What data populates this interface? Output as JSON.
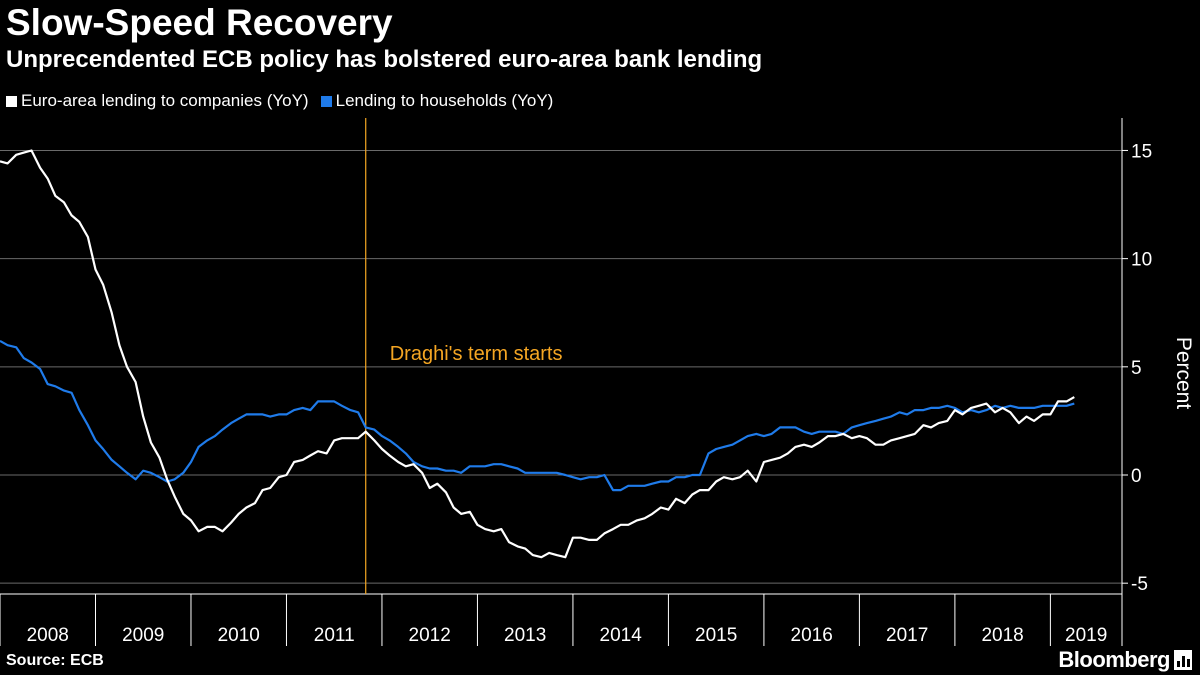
{
  "title": "Slow-Speed Recovery",
  "subtitle": "Unprecendented ECB policy has bolstered euro-area bank lending",
  "legend": [
    {
      "label": "Euro-area lending to companies (YoY)",
      "color": "#ffffff"
    },
    {
      "label": "Lending to households (YoY)",
      "color": "#1f7bea"
    }
  ],
  "source": "Source: ECB",
  "brand": "Bloomberg",
  "chart_data": {
    "type": "line",
    "ylabel": "Percent",
    "ylim": [
      -5.5,
      16.5
    ],
    "yticks": [
      -5,
      0,
      5,
      10,
      15
    ],
    "xlim": [
      2008.0,
      2019.75
    ],
    "xtick_labels": [
      "2008",
      "2009",
      "2010",
      "2011",
      "2012",
      "2013",
      "2014",
      "2015",
      "2016",
      "2017",
      "2018",
      "2019"
    ],
    "annotation": {
      "text": "Draghi's term starts",
      "x": 2011.83,
      "color": "#f5a623"
    },
    "series": [
      {
        "name": "Euro-area lending to companies (YoY)",
        "color": "#ffffff",
        "points": [
          [
            2008.0,
            14.5
          ],
          [
            2008.08,
            14.4
          ],
          [
            2008.17,
            14.8
          ],
          [
            2008.25,
            14.9
          ],
          [
            2008.33,
            15.0
          ],
          [
            2008.42,
            14.2
          ],
          [
            2008.5,
            13.7
          ],
          [
            2008.58,
            12.9
          ],
          [
            2008.67,
            12.6
          ],
          [
            2008.75,
            12.0
          ],
          [
            2008.83,
            11.7
          ],
          [
            2008.92,
            11.0
          ],
          [
            2009.0,
            9.5
          ],
          [
            2009.08,
            8.8
          ],
          [
            2009.17,
            7.5
          ],
          [
            2009.25,
            6.0
          ],
          [
            2009.33,
            5.0
          ],
          [
            2009.42,
            4.3
          ],
          [
            2009.5,
            2.7
          ],
          [
            2009.58,
            1.5
          ],
          [
            2009.67,
            0.8
          ],
          [
            2009.75,
            -0.2
          ],
          [
            2009.83,
            -1.0
          ],
          [
            2009.92,
            -1.8
          ],
          [
            2010.0,
            -2.1
          ],
          [
            2010.08,
            -2.6
          ],
          [
            2010.17,
            -2.4
          ],
          [
            2010.25,
            -2.4
          ],
          [
            2010.33,
            -2.6
          ],
          [
            2010.42,
            -2.2
          ],
          [
            2010.5,
            -1.8
          ],
          [
            2010.58,
            -1.5
          ],
          [
            2010.67,
            -1.3
          ],
          [
            2010.75,
            -0.7
          ],
          [
            2010.83,
            -0.6
          ],
          [
            2010.92,
            -0.1
          ],
          [
            2011.0,
            0.0
          ],
          [
            2011.08,
            0.6
          ],
          [
            2011.17,
            0.7
          ],
          [
            2011.25,
            0.9
          ],
          [
            2011.33,
            1.1
          ],
          [
            2011.42,
            1.0
          ],
          [
            2011.5,
            1.6
          ],
          [
            2011.58,
            1.7
          ],
          [
            2011.67,
            1.7
          ],
          [
            2011.75,
            1.7
          ],
          [
            2011.83,
            2.0
          ],
          [
            2011.92,
            1.6
          ],
          [
            2012.0,
            1.2
          ],
          [
            2012.08,
            0.9
          ],
          [
            2012.17,
            0.6
          ],
          [
            2012.25,
            0.4
          ],
          [
            2012.33,
            0.5
          ],
          [
            2012.42,
            0.1
          ],
          [
            2012.5,
            -0.6
          ],
          [
            2012.58,
            -0.4
          ],
          [
            2012.67,
            -0.8
          ],
          [
            2012.75,
            -1.5
          ],
          [
            2012.83,
            -1.8
          ],
          [
            2012.92,
            -1.7
          ],
          [
            2013.0,
            -2.3
          ],
          [
            2013.08,
            -2.5
          ],
          [
            2013.17,
            -2.6
          ],
          [
            2013.25,
            -2.5
          ],
          [
            2013.33,
            -3.1
          ],
          [
            2013.42,
            -3.3
          ],
          [
            2013.5,
            -3.4
          ],
          [
            2013.58,
            -3.7
          ],
          [
            2013.67,
            -3.8
          ],
          [
            2013.75,
            -3.6
          ],
          [
            2013.83,
            -3.7
          ],
          [
            2013.92,
            -3.8
          ],
          [
            2014.0,
            -2.9
          ],
          [
            2014.08,
            -2.9
          ],
          [
            2014.17,
            -3.0
          ],
          [
            2014.25,
            -3.0
          ],
          [
            2014.33,
            -2.7
          ],
          [
            2014.42,
            -2.5
          ],
          [
            2014.5,
            -2.3
          ],
          [
            2014.58,
            -2.3
          ],
          [
            2014.67,
            -2.1
          ],
          [
            2014.75,
            -2.0
          ],
          [
            2014.83,
            -1.8
          ],
          [
            2014.92,
            -1.5
          ],
          [
            2015.0,
            -1.6
          ],
          [
            2015.08,
            -1.1
          ],
          [
            2015.17,
            -1.3
          ],
          [
            2015.25,
            -0.9
          ],
          [
            2015.33,
            -0.7
          ],
          [
            2015.42,
            -0.7
          ],
          [
            2015.5,
            -0.3
          ],
          [
            2015.58,
            -0.1
          ],
          [
            2015.67,
            -0.2
          ],
          [
            2015.75,
            -0.1
          ],
          [
            2015.83,
            0.2
          ],
          [
            2015.92,
            -0.3
          ],
          [
            2016.0,
            0.6
          ],
          [
            2016.08,
            0.7
          ],
          [
            2016.17,
            0.8
          ],
          [
            2016.25,
            1.0
          ],
          [
            2016.33,
            1.3
          ],
          [
            2016.42,
            1.4
          ],
          [
            2016.5,
            1.3
          ],
          [
            2016.58,
            1.5
          ],
          [
            2016.67,
            1.8
          ],
          [
            2016.75,
            1.8
          ],
          [
            2016.83,
            1.9
          ],
          [
            2016.92,
            1.7
          ],
          [
            2017.0,
            1.8
          ],
          [
            2017.08,
            1.7
          ],
          [
            2017.17,
            1.4
          ],
          [
            2017.25,
            1.4
          ],
          [
            2017.33,
            1.6
          ],
          [
            2017.42,
            1.7
          ],
          [
            2017.5,
            1.8
          ],
          [
            2017.58,
            1.9
          ],
          [
            2017.67,
            2.3
          ],
          [
            2017.75,
            2.2
          ],
          [
            2017.83,
            2.4
          ],
          [
            2017.92,
            2.5
          ],
          [
            2018.0,
            3.0
          ],
          [
            2018.08,
            2.8
          ],
          [
            2018.17,
            3.1
          ],
          [
            2018.25,
            3.2
          ],
          [
            2018.33,
            3.3
          ],
          [
            2018.42,
            2.9
          ],
          [
            2018.5,
            3.1
          ],
          [
            2018.58,
            2.9
          ],
          [
            2018.67,
            2.4
          ],
          [
            2018.75,
            2.7
          ],
          [
            2018.83,
            2.5
          ],
          [
            2018.92,
            2.8
          ],
          [
            2019.0,
            2.8
          ],
          [
            2019.08,
            3.4
          ],
          [
            2019.17,
            3.4
          ],
          [
            2019.25,
            3.6
          ]
        ]
      },
      {
        "name": "Lending to households (YoY)",
        "color": "#1f7bea",
        "points": [
          [
            2008.0,
            6.2
          ],
          [
            2008.08,
            6.0
          ],
          [
            2008.17,
            5.9
          ],
          [
            2008.25,
            5.4
          ],
          [
            2008.33,
            5.2
          ],
          [
            2008.42,
            4.9
          ],
          [
            2008.5,
            4.2
          ],
          [
            2008.58,
            4.1
          ],
          [
            2008.67,
            3.9
          ],
          [
            2008.75,
            3.8
          ],
          [
            2008.83,
            3.0
          ],
          [
            2008.92,
            2.3
          ],
          [
            2009.0,
            1.6
          ],
          [
            2009.08,
            1.2
          ],
          [
            2009.17,
            0.7
          ],
          [
            2009.25,
            0.4
          ],
          [
            2009.33,
            0.1
          ],
          [
            2009.42,
            -0.2
          ],
          [
            2009.5,
            0.2
          ],
          [
            2009.58,
            0.1
          ],
          [
            2009.67,
            -0.1
          ],
          [
            2009.75,
            -0.3
          ],
          [
            2009.83,
            -0.2
          ],
          [
            2009.92,
            0.1
          ],
          [
            2010.0,
            0.6
          ],
          [
            2010.08,
            1.3
          ],
          [
            2010.17,
            1.6
          ],
          [
            2010.25,
            1.8
          ],
          [
            2010.33,
            2.1
          ],
          [
            2010.42,
            2.4
          ],
          [
            2010.5,
            2.6
          ],
          [
            2010.58,
            2.8
          ],
          [
            2010.67,
            2.8
          ],
          [
            2010.75,
            2.8
          ],
          [
            2010.83,
            2.7
          ],
          [
            2010.92,
            2.8
          ],
          [
            2011.0,
            2.8
          ],
          [
            2011.08,
            3.0
          ],
          [
            2011.17,
            3.1
          ],
          [
            2011.25,
            3.0
          ],
          [
            2011.33,
            3.4
          ],
          [
            2011.42,
            3.4
          ],
          [
            2011.5,
            3.4
          ],
          [
            2011.58,
            3.2
          ],
          [
            2011.67,
            3.0
          ],
          [
            2011.75,
            2.9
          ],
          [
            2011.83,
            2.2
          ],
          [
            2011.92,
            2.1
          ],
          [
            2012.0,
            1.8
          ],
          [
            2012.08,
            1.6
          ],
          [
            2012.17,
            1.3
          ],
          [
            2012.25,
            1.0
          ],
          [
            2012.33,
            0.6
          ],
          [
            2012.42,
            0.4
          ],
          [
            2012.5,
            0.3
          ],
          [
            2012.58,
            0.3
          ],
          [
            2012.67,
            0.2
          ],
          [
            2012.75,
            0.2
          ],
          [
            2012.83,
            0.1
          ],
          [
            2012.92,
            0.4
          ],
          [
            2013.0,
            0.4
          ],
          [
            2013.08,
            0.4
          ],
          [
            2013.17,
            0.5
          ],
          [
            2013.25,
            0.5
          ],
          [
            2013.33,
            0.4
          ],
          [
            2013.42,
            0.3
          ],
          [
            2013.5,
            0.1
          ],
          [
            2013.58,
            0.1
          ],
          [
            2013.67,
            0.1
          ],
          [
            2013.75,
            0.1
          ],
          [
            2013.83,
            0.1
          ],
          [
            2013.92,
            0.0
          ],
          [
            2014.0,
            -0.1
          ],
          [
            2014.08,
            -0.2
          ],
          [
            2014.17,
            -0.1
          ],
          [
            2014.25,
            -0.1
          ],
          [
            2014.33,
            0.0
          ],
          [
            2014.42,
            -0.7
          ],
          [
            2014.5,
            -0.7
          ],
          [
            2014.58,
            -0.5
          ],
          [
            2014.67,
            -0.5
          ],
          [
            2014.75,
            -0.5
          ],
          [
            2014.83,
            -0.4
          ],
          [
            2014.92,
            -0.3
          ],
          [
            2015.0,
            -0.3
          ],
          [
            2015.08,
            -0.1
          ],
          [
            2015.17,
            -0.1
          ],
          [
            2015.25,
            0.0
          ],
          [
            2015.33,
            0.0
          ],
          [
            2015.42,
            1.0
          ],
          [
            2015.5,
            1.2
          ],
          [
            2015.58,
            1.3
          ],
          [
            2015.67,
            1.4
          ],
          [
            2015.75,
            1.6
          ],
          [
            2015.83,
            1.8
          ],
          [
            2015.92,
            1.9
          ],
          [
            2016.0,
            1.8
          ],
          [
            2016.08,
            1.9
          ],
          [
            2016.17,
            2.2
          ],
          [
            2016.25,
            2.2
          ],
          [
            2016.33,
            2.2
          ],
          [
            2016.42,
            2.0
          ],
          [
            2016.5,
            1.9
          ],
          [
            2016.58,
            2.0
          ],
          [
            2016.67,
            2.0
          ],
          [
            2016.75,
            2.0
          ],
          [
            2016.83,
            1.9
          ],
          [
            2016.92,
            2.2
          ],
          [
            2017.0,
            2.3
          ],
          [
            2017.08,
            2.4
          ],
          [
            2017.17,
            2.5
          ],
          [
            2017.25,
            2.6
          ],
          [
            2017.33,
            2.7
          ],
          [
            2017.42,
            2.9
          ],
          [
            2017.5,
            2.8
          ],
          [
            2017.58,
            3.0
          ],
          [
            2017.67,
            3.0
          ],
          [
            2017.75,
            3.1
          ],
          [
            2017.83,
            3.1
          ],
          [
            2017.92,
            3.2
          ],
          [
            2018.0,
            3.1
          ],
          [
            2018.08,
            2.9
          ],
          [
            2018.17,
            3.0
          ],
          [
            2018.25,
            2.9
          ],
          [
            2018.33,
            3.0
          ],
          [
            2018.42,
            3.2
          ],
          [
            2018.5,
            3.1
          ],
          [
            2018.58,
            3.2
          ],
          [
            2018.67,
            3.1
          ],
          [
            2018.75,
            3.1
          ],
          [
            2018.83,
            3.1
          ],
          [
            2018.92,
            3.2
          ],
          [
            2019.0,
            3.2
          ],
          [
            2019.08,
            3.2
          ],
          [
            2019.17,
            3.2
          ],
          [
            2019.25,
            3.3
          ]
        ]
      }
    ]
  }
}
